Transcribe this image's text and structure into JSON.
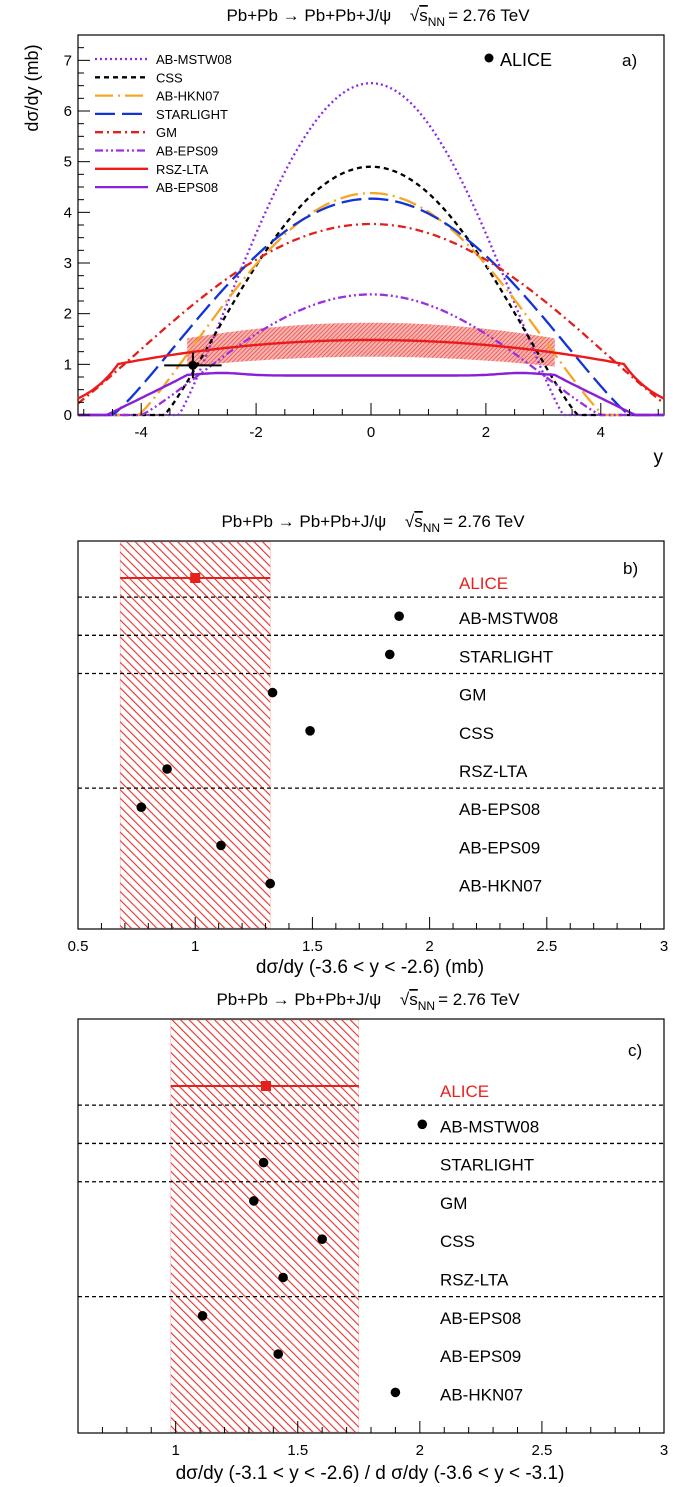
{
  "colors": {
    "ab_mstw08": "#8a2be2",
    "css": "#000000",
    "ab_hkn07": "#f5a623",
    "starlight": "#1034d8",
    "gm": "#e0201c",
    "ab_eps09": "#9b2fe0",
    "rsz_lta": "#ee1a1a",
    "ab_eps08": "#8a1fd6",
    "alice_band": "#e8302c",
    "points": "#000000"
  },
  "chart_data": [
    {
      "id": "a",
      "type": "line",
      "title_main": "Pb+Pb → Pb+Pb+J/ψ",
      "title_energy_prefix": "s",
      "title_energy_sub": "NN",
      "title_energy_value": "= 2.76 TeV",
      "xlabel": "y",
      "ylabel": "dσ/dy (mb)",
      "panel_label": "a)",
      "xlim": [
        -5.1,
        5.1
      ],
      "ylim": [
        0,
        7.5
      ],
      "xticks": [
        -4,
        -2,
        0,
        2,
        4
      ],
      "yticks": [
        0,
        1,
        2,
        3,
        4,
        5,
        6,
        7
      ],
      "legend_position": "top-left",
      "series": [
        {
          "name": "AB-MSTW08",
          "style": "dotted",
          "color_key": "ab_mstw08",
          "peak": 6.55,
          "halfwidth": 3.35,
          "shape": "cosine"
        },
        {
          "name": "CSS",
          "style": "dashed",
          "color_key": "css",
          "peak": 4.9,
          "halfwidth": 3.6,
          "shape": "cosine"
        },
        {
          "name": "AB-HKN07",
          "style": "longdashdot",
          "color_key": "ab_hkn07",
          "peak": 4.38,
          "halfwidth": 4.05,
          "shape": "cosine"
        },
        {
          "name": "STARLIGHT",
          "style": "longdash",
          "color_key": "starlight",
          "peak": 4.27,
          "halfwidth": 4.5,
          "shape": "cosine"
        },
        {
          "name": "GM",
          "style": "dashdot",
          "color_key": "gm",
          "peak": 3.77,
          "halfwidth": 5.4,
          "shape": "cosine"
        },
        {
          "name": "AB-EPS09",
          "style": "dashdotdot",
          "color_key": "ab_eps09",
          "peak": 2.38,
          "halfwidth": 4.0,
          "shape": "cosine"
        },
        {
          "name": "RSZ-LTA",
          "style": "solid",
          "color_key": "rsz_lta",
          "peak": 1.48,
          "halfwidth": 4.4,
          "shape": "flat",
          "band": [
            1.15,
            1.82
          ]
        },
        {
          "name": "AB-EPS08",
          "style": "solid",
          "color_key": "ab_eps08",
          "peak": 0.78,
          "halfwidth": 4.0,
          "shape": "plateau"
        }
      ],
      "points": [
        {
          "name": "ALICE",
          "x": -3.1,
          "y": 0.98,
          "xerr": 0.5,
          "yerr": 0.25
        }
      ]
    },
    {
      "id": "b",
      "type": "scatter",
      "title_main": "Pb+Pb → Pb+Pb+J/ψ",
      "title_energy_prefix": "s",
      "title_energy_sub": "NN",
      "title_energy_value": "= 2.76 TeV",
      "xlabel": "dσ/dy (-3.6 < y < -2.6) (mb)",
      "panel_label": "b)",
      "xlim": [
        0.5,
        3.0
      ],
      "xticks": [
        "0.5",
        "1",
        "1.5",
        "2",
        "2.5",
        "3"
      ],
      "alice": {
        "label": "ALICE",
        "value": 1.0,
        "band": [
          0.68,
          1.32
        ]
      },
      "models": [
        {
          "label": "AB-MSTW08",
          "value": 1.87
        },
        {
          "label": "STARLIGHT",
          "value": 1.83
        },
        {
          "label": "GM",
          "value": 1.33
        },
        {
          "label": "CSS",
          "value": 1.49
        },
        {
          "label": "RSZ-LTA",
          "value": 0.88
        },
        {
          "label": "AB-EPS08",
          "value": 0.77
        },
        {
          "label": "AB-EPS09",
          "value": 1.11
        },
        {
          "label": "AB-HKN07",
          "value": 1.32
        }
      ],
      "separators_after": [
        0,
        1,
        2,
        5
      ]
    },
    {
      "id": "c",
      "type": "scatter",
      "title_main": "Pb+Pb → Pb+Pb+J/ψ",
      "title_energy_prefix": "s",
      "title_energy_sub": "NN",
      "title_energy_value": "= 2.76 TeV",
      "xlabel": "dσ/dy (-3.1 < y < -2.6) / d σ/dy (-3.6 < y < -3.1)",
      "panel_label": "c)",
      "xlim": [
        0.6,
        3.0
      ],
      "xticks": [
        "1",
        "1.5",
        "2",
        "2.5",
        "3"
      ],
      "alice": {
        "label": "ALICE",
        "value": 1.37,
        "band": [
          0.98,
          1.75
        ]
      },
      "models": [
        {
          "label": "AB-MSTW08",
          "value": 2.01
        },
        {
          "label": "STARLIGHT",
          "value": 1.36
        },
        {
          "label": "GM",
          "value": 1.32
        },
        {
          "label": "CSS",
          "value": 1.6
        },
        {
          "label": "RSZ-LTA",
          "value": 1.44
        },
        {
          "label": "AB-EPS08",
          "value": 1.11
        },
        {
          "label": "AB-EPS09",
          "value": 1.42
        },
        {
          "label": "AB-HKN07",
          "value": 1.9
        }
      ],
      "separators_after": [
        0,
        1,
        2,
        5
      ]
    }
  ]
}
